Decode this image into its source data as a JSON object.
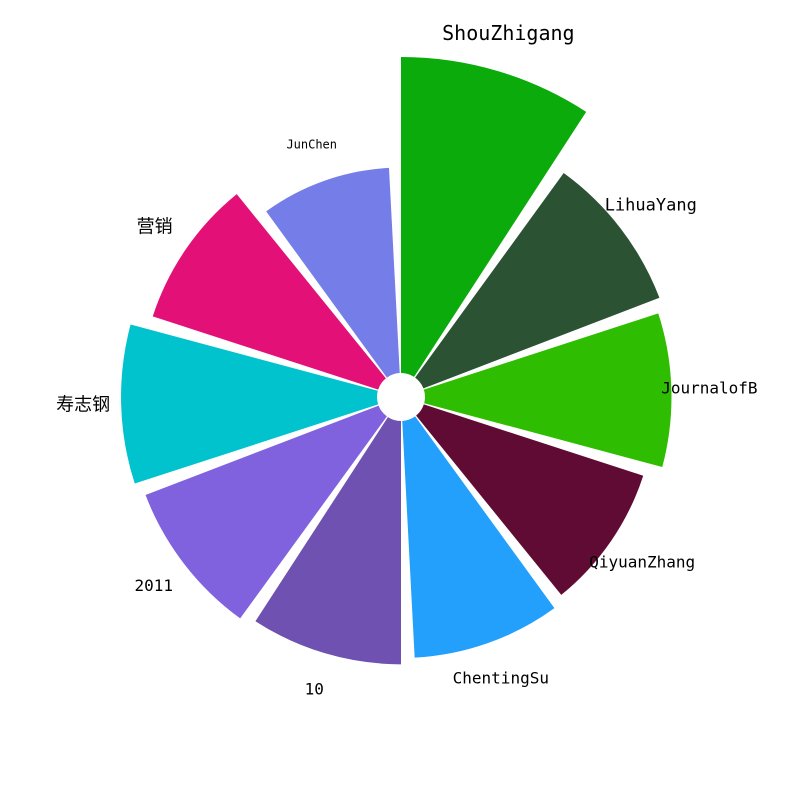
{
  "chart_data": {
    "type": "bar",
    "layout": "polar",
    "categories": [
      "ShouZhigang",
      "LihuaYang",
      "JournalofB",
      "QiyuanZhang",
      "ChentingSu",
      "10",
      "2011",
      "寿志钢",
      "营销",
      "JunChen"
    ],
    "values": [
      100,
      80,
      78,
      73,
      75,
      77,
      79,
      81,
      75,
      65
    ],
    "colors": [
      "#0aab0a",
      "#2b5232",
      "#2ebd00",
      "#600b34",
      "#23a0fb",
      "#6e51b0",
      "#8062de",
      "#00c3ce",
      "#e31078",
      "#757ee8"
    ],
    "title": "",
    "xlabel": "",
    "ylabel": "",
    "grid": false,
    "legend": "none"
  }
}
